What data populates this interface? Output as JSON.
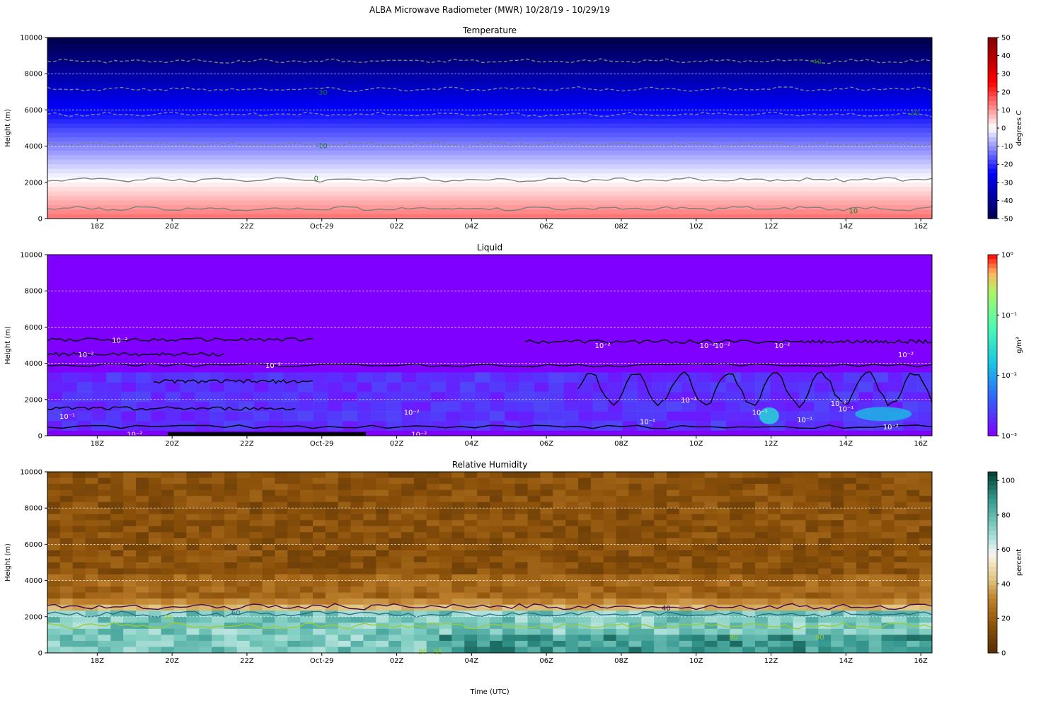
{
  "figure": {
    "suptitle": "ALBA Microwave Radiometer (MWR) 10/28/19 - 10/29/19",
    "xlabel": "Time (UTC)",
    "xticks": [
      "18Z",
      "20Z",
      "22Z",
      "Oct-29",
      "02Z",
      "04Z",
      "06Z",
      "08Z",
      "10Z",
      "12Z",
      "14Z",
      "16Z"
    ]
  },
  "chart_data": [
    {
      "type": "heatmap",
      "title": "Temperature",
      "xlabel": "",
      "ylabel": "Height (m)",
      "x_range_hours": [
        16.67,
        40.3
      ],
      "ylim": [
        0,
        10000
      ],
      "yticks": [
        0,
        2000,
        4000,
        6000,
        8000,
        10000
      ],
      "grid": true,
      "colormap": "seismic",
      "colorbar": {
        "label": "degrees C",
        "scale": "linear",
        "range": [
          -50,
          50
        ],
        "ticks": [
          "50",
          "40",
          "30",
          "20",
          "10",
          "0",
          "-10",
          "-20",
          "-30",
          "-40",
          "-50"
        ]
      },
      "surface_value": 14,
      "lapse_rate_c_per_km": 6.5,
      "contour_labels": [
        "-40",
        "-30",
        "-10",
        "0",
        "10"
      ],
      "contours": [
        {
          "value": -40,
          "mean_height": 8700,
          "style": "dashed",
          "label_time": 37.2,
          "label_height": 8700
        },
        {
          "value": -30,
          "mean_height": 7150,
          "style": "dashed",
          "label_time": 24.0,
          "label_height": 7000
        },
        {
          "value": -20,
          "mean_height": 5750,
          "style": "dashed",
          "label_time": 39.8,
          "label_height": 5850
        },
        {
          "value": -10,
          "mean_height": 4100,
          "style": "dashed",
          "label_time": 24.0,
          "label_height": 4050
        },
        {
          "value": 0,
          "mean_height": 2150,
          "style": "solid",
          "label_time": 23.85,
          "label_height": 2250
        },
        {
          "value": 10,
          "mean_height": 550,
          "style": "solid",
          "label_time": 38.2,
          "label_height": 450
        }
      ]
    },
    {
      "type": "heatmap",
      "title": "Liquid",
      "xlabel": "",
      "ylabel": "Height (m)",
      "x_range_hours": [
        16.67,
        40.3
      ],
      "ylim": [
        0,
        10000
      ],
      "yticks": [
        0,
        2000,
        4000,
        6000,
        8000,
        10000
      ],
      "grid": true,
      "colormap": "rainbow",
      "colorbar": {
        "label": "g/m³",
        "scale": "log",
        "range": [
          0.001,
          1
        ],
        "ticks": [
          "10⁰",
          "10⁻¹",
          "10⁻²",
          "10⁻³"
        ]
      },
      "background_value": 0.001,
      "layer_value_range": [
        0.003,
        0.03
      ],
      "layer_height_range": [
        300,
        3500
      ],
      "contour_labels": [
        {
          "text": "10⁻²",
          "time": 18.6,
          "height": 5300
        },
        {
          "text": "10⁻²",
          "time": 17.7,
          "height": 4500
        },
        {
          "text": "10⁻²",
          "time": 22.7,
          "height": 3900
        },
        {
          "text": "10⁻²",
          "time": 26.4,
          "height": 1300
        },
        {
          "text": "10⁻²",
          "time": 26.6,
          "height": 100
        },
        {
          "text": "10⁻²",
          "time": 19.0,
          "height": 100
        },
        {
          "text": "10⁻¹",
          "time": 17.2,
          "height": 1100
        },
        {
          "text": "10⁻²",
          "time": 31.5,
          "height": 5000
        },
        {
          "text": "10⁻²",
          "time": 34.7,
          "height": 5000
        },
        {
          "text": "10⁻²",
          "time": 36.3,
          "height": 5000
        },
        {
          "text": "10⁻²",
          "time": 34.3,
          "height": 5000
        },
        {
          "text": "10⁻²",
          "time": 39.6,
          "height": 4500
        },
        {
          "text": "10⁻¹",
          "time": 32.7,
          "height": 800
        },
        {
          "text": "10⁻²",
          "time": 33.8,
          "height": 2000
        },
        {
          "text": "10⁻¹",
          "time": 35.7,
          "height": 1300
        },
        {
          "text": "10⁻¹",
          "time": 38.0,
          "height": 1500
        },
        {
          "text": "10⁻²",
          "time": 37.8,
          "height": 1800
        },
        {
          "text": "10⁻¹",
          "time": 36.9,
          "height": 900
        },
        {
          "text": "10⁻²",
          "time": 39.2,
          "height": 500
        }
      ]
    },
    {
      "type": "heatmap",
      "title": "Relative Humidity",
      "xlabel": "",
      "ylabel": "Height (m)",
      "x_range_hours": [
        16.67,
        40.3
      ],
      "ylim": [
        0,
        10000
      ],
      "yticks": [
        0,
        2000,
        4000,
        6000,
        8000,
        10000
      ],
      "grid": true,
      "colormap": "BrBG",
      "colorbar": {
        "label": "percent",
        "scale": "linear",
        "range": [
          0,
          105
        ],
        "ticks": [
          "100",
          "80",
          "60",
          "40",
          "20",
          "0"
        ]
      },
      "upper_value_range": [
        8,
        22
      ],
      "moist_layer_top": 2300,
      "moist_layer_value": 75,
      "contour_labels": [
        "40",
        "60",
        "90",
        "95"
      ],
      "contours": [
        {
          "value": 40,
          "mean_height": 2550,
          "label_time": 33.2,
          "label_height": 2500
        },
        {
          "value": 60,
          "mean_height": 2150,
          "label_time": 21.7,
          "label_height": 2250
        },
        {
          "value": 90,
          "mean_height": 1500
        }
      ],
      "label_positions": [
        {
          "text": "90",
          "time": 19.9,
          "height": 2000
        },
        {
          "text": "90",
          "time": 35.0,
          "height": 900
        },
        {
          "text": "90",
          "time": 37.3,
          "height": 900
        },
        {
          "text": "95",
          "time": 27.1,
          "height": 100
        },
        {
          "text": "90",
          "time": 26.7,
          "height": 100
        }
      ]
    }
  ]
}
